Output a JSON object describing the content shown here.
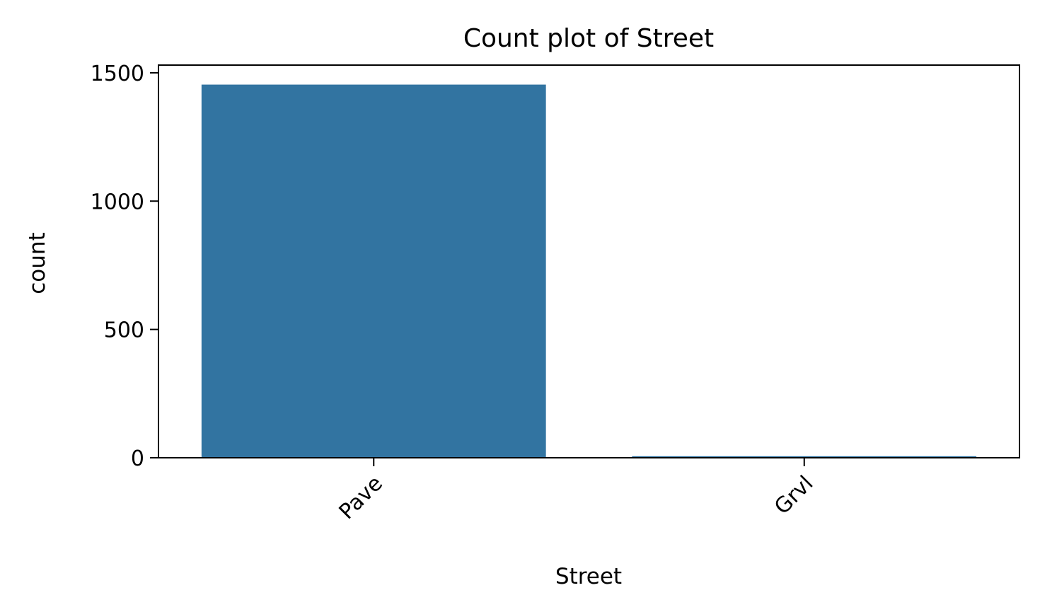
{
  "chart_data": {
    "type": "bar",
    "title": "Count plot of Street",
    "xlabel": "Street",
    "ylabel": "count",
    "categories": [
      "Pave",
      "Grvl"
    ],
    "values": [
      1454,
      6
    ],
    "ylim": [
      0,
      1530
    ],
    "yticks": [
      0,
      500,
      1000,
      1500
    ],
    "ytick_labels": [
      "0",
      "500",
      "1000",
      "1500"
    ],
    "xtick_rotation_deg": 45,
    "grid": false,
    "legend": "none",
    "bar_color": "#3274a1"
  }
}
